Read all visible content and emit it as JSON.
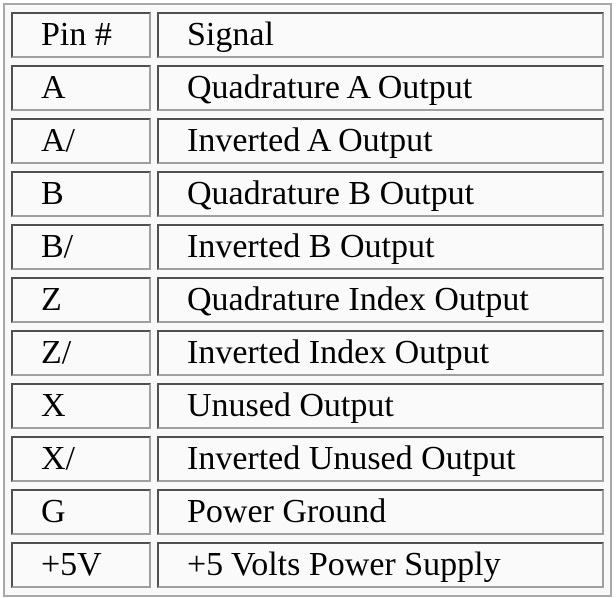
{
  "table": {
    "headers": [
      "Pin #",
      "Signal"
    ],
    "rows": [
      {
        "pin": "A",
        "signal": "Quadrature A Output"
      },
      {
        "pin": "A/",
        "signal": "Inverted A Output"
      },
      {
        "pin": "B",
        "signal": "Quadrature B Output"
      },
      {
        "pin": "B/",
        "signal": "Inverted B Output"
      },
      {
        "pin": "Z",
        "signal": "Quadrature Index Output"
      },
      {
        "pin": "Z/",
        "signal": "Inverted Index Output"
      },
      {
        "pin": "X",
        "signal": "Unused Output"
      },
      {
        "pin": "X/",
        "signal": "Inverted Unused Output"
      },
      {
        "pin": "G",
        "signal": "Power Ground"
      },
      {
        "pin": "+5V",
        "signal": "+5 Volts Power Supply"
      }
    ]
  }
}
